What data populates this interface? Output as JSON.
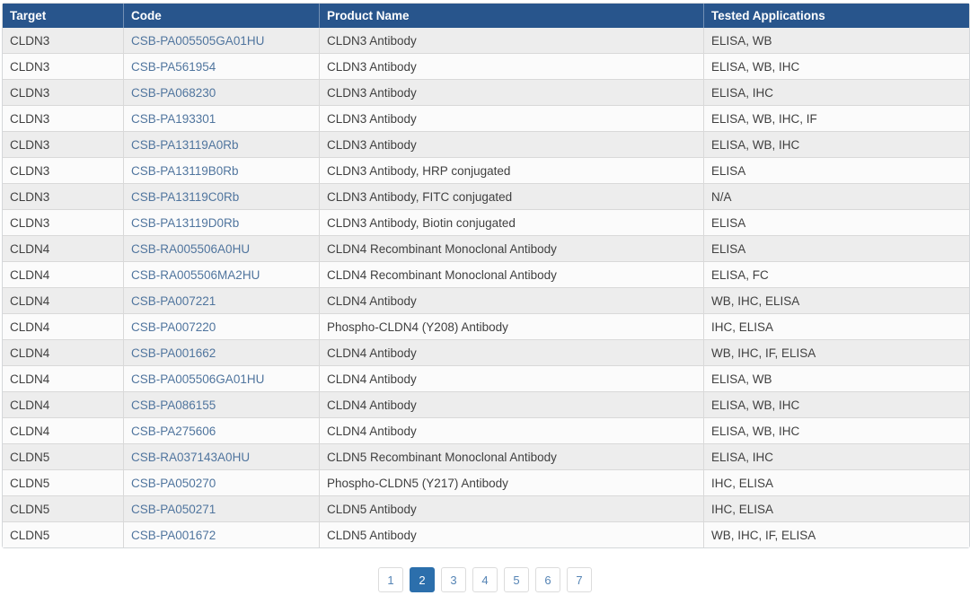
{
  "table": {
    "columns": [
      {
        "key": "target",
        "label": "Target"
      },
      {
        "key": "code",
        "label": "Code"
      },
      {
        "key": "product",
        "label": "Product Name"
      },
      {
        "key": "apps",
        "label": "Tested Applications"
      }
    ],
    "rows": [
      {
        "target": "CLDN3",
        "code": "CSB-PA005505GA01HU",
        "product": "CLDN3 Antibody",
        "apps": "ELISA, WB"
      },
      {
        "target": "CLDN3",
        "code": "CSB-PA561954",
        "product": "CLDN3 Antibody",
        "apps": "ELISA, WB, IHC"
      },
      {
        "target": "CLDN3",
        "code": "CSB-PA068230",
        "product": "CLDN3 Antibody",
        "apps": "ELISA, IHC"
      },
      {
        "target": "CLDN3",
        "code": "CSB-PA193301",
        "product": "CLDN3 Antibody",
        "apps": "ELISA, WB, IHC, IF"
      },
      {
        "target": "CLDN3",
        "code": "CSB-PA13119A0Rb",
        "product": "CLDN3 Antibody",
        "apps": "ELISA, WB, IHC"
      },
      {
        "target": "CLDN3",
        "code": "CSB-PA13119B0Rb",
        "product": "CLDN3 Antibody, HRP conjugated",
        "apps": "ELISA"
      },
      {
        "target": "CLDN3",
        "code": "CSB-PA13119C0Rb",
        "product": "CLDN3 Antibody, FITC conjugated",
        "apps": "N/A"
      },
      {
        "target": "CLDN3",
        "code": "CSB-PA13119D0Rb",
        "product": "CLDN3 Antibody, Biotin conjugated",
        "apps": "ELISA"
      },
      {
        "target": "CLDN4",
        "code": "CSB-RA005506A0HU",
        "product": "CLDN4 Recombinant Monoclonal Antibody",
        "apps": "ELISA"
      },
      {
        "target": "CLDN4",
        "code": "CSB-RA005506MA2HU",
        "product": "CLDN4 Recombinant Monoclonal Antibody",
        "apps": "ELISA, FC"
      },
      {
        "target": "CLDN4",
        "code": "CSB-PA007221",
        "product": "CLDN4 Antibody",
        "apps": "WB, IHC, ELISA"
      },
      {
        "target": "CLDN4",
        "code": "CSB-PA007220",
        "product": "Phospho-CLDN4 (Y208) Antibody",
        "apps": "IHC, ELISA"
      },
      {
        "target": "CLDN4",
        "code": "CSB-PA001662",
        "product": "CLDN4 Antibody",
        "apps": "WB, IHC, IF, ELISA"
      },
      {
        "target": "CLDN4",
        "code": "CSB-PA005506GA01HU",
        "product": "CLDN4 Antibody",
        "apps": "ELISA, WB"
      },
      {
        "target": "CLDN4",
        "code": "CSB-PA086155",
        "product": "CLDN4 Antibody",
        "apps": "ELISA, WB, IHC"
      },
      {
        "target": "CLDN4",
        "code": "CSB-PA275606",
        "product": "CLDN4 Antibody",
        "apps": "ELISA, WB, IHC"
      },
      {
        "target": "CLDN5",
        "code": "CSB-RA037143A0HU",
        "product": "CLDN5 Recombinant Monoclonal Antibody",
        "apps": "ELISA, IHC"
      },
      {
        "target": "CLDN5",
        "code": "CSB-PA050270",
        "product": "Phospho-CLDN5 (Y217) Antibody",
        "apps": "IHC, ELISA"
      },
      {
        "target": "CLDN5",
        "code": "CSB-PA050271",
        "product": "CLDN5 Antibody",
        "apps": "IHC, ELISA"
      },
      {
        "target": "CLDN5",
        "code": "CSB-PA001672",
        "product": "CLDN5 Antibody",
        "apps": "WB, IHC, IF, ELISA"
      }
    ]
  },
  "pagination": {
    "pages": [
      "1",
      "2",
      "3",
      "4",
      "5",
      "6",
      "7"
    ],
    "active_page": "2"
  },
  "colors": {
    "header_bg": "#28558C",
    "active_page_bg": "#2C6FAC",
    "link_color": "#50759E",
    "row_stripe": "#ededed",
    "row_plain": "#fbfbfb",
    "grid_line": "#d9d9d9"
  }
}
